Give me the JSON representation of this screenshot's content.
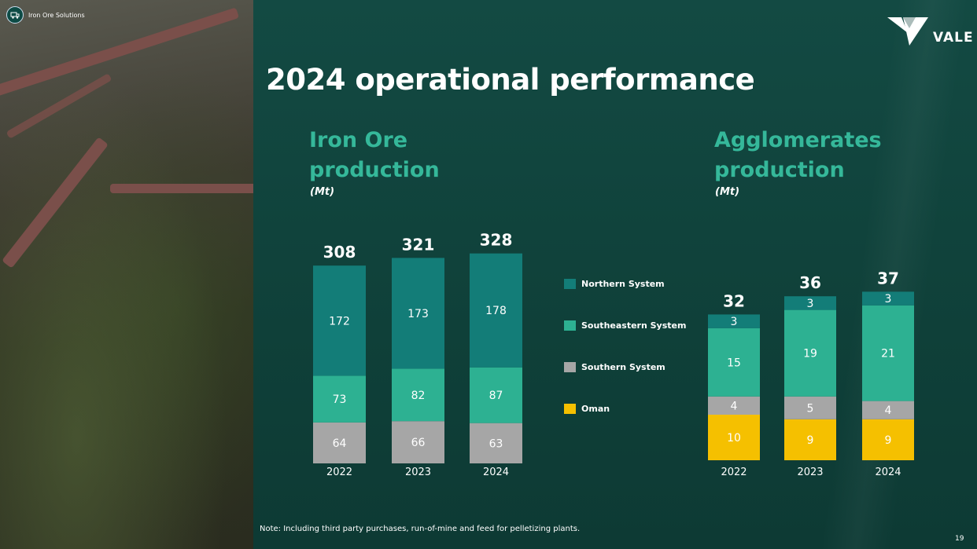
{
  "header": {
    "section_label": "Iron Ore Solutions",
    "logo_text": "VALE",
    "title": "2024 operational performance"
  },
  "colors": {
    "northern": "#137d78",
    "southeastern": "#2db192",
    "southern": "#a6a6a6",
    "oman": "#f5c000"
  },
  "legend": [
    {
      "key": "northern",
      "label": "Northern System"
    },
    {
      "key": "southeastern",
      "label": "Southeastern System"
    },
    {
      "key": "southern",
      "label": "Southern System"
    },
    {
      "key": "oman",
      "label": "Oman"
    }
  ],
  "chart_data": [
    {
      "type": "bar",
      "stacked": true,
      "title": "Iron Ore production",
      "unit": "(Mt)",
      "categories": [
        "2022",
        "2023",
        "2024"
      ],
      "totals": [
        308,
        321,
        328
      ],
      "series": [
        {
          "key": "southern",
          "name": "Southern System",
          "values": [
            64,
            66,
            63
          ]
        },
        {
          "key": "southeastern",
          "name": "Southeastern System",
          "values": [
            73,
            82,
            87
          ]
        },
        {
          "key": "northern",
          "name": "Northern System",
          "values": [
            172,
            173,
            178
          ]
        }
      ]
    },
    {
      "type": "bar",
      "stacked": true,
      "title": "Agglomerates production",
      "unit": "(Mt)",
      "categories": [
        "2022",
        "2023",
        "2024"
      ],
      "totals": [
        32,
        36,
        37
      ],
      "series": [
        {
          "key": "oman",
          "name": "Oman",
          "values": [
            10,
            9,
            9
          ]
        },
        {
          "key": "southern",
          "name": "Southern System",
          "values": [
            4,
            5,
            4
          ]
        },
        {
          "key": "southeastern",
          "name": "Southeastern System",
          "values": [
            15,
            19,
            21
          ]
        },
        {
          "key": "northern",
          "name": "Northern System",
          "values": [
            3,
            3,
            3
          ]
        }
      ]
    }
  ],
  "footer": {
    "note": "Note: Including third party purchases, run-of-mine and feed for pelletizing plants.",
    "page_number": "19"
  }
}
